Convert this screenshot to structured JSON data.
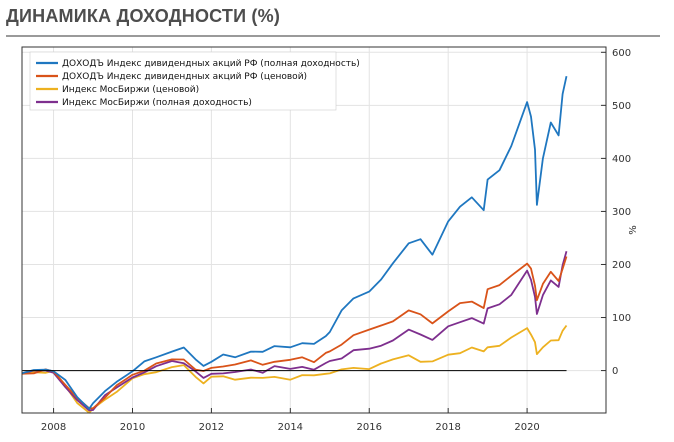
{
  "header": {
    "title": "ДИНАМИКА ДОХОДНОСТИ (%)"
  },
  "chart_data": {
    "type": "line",
    "title": "",
    "xlabel": "",
    "ylabel": "%",
    "xlim": [
      2007.2,
      2022.0
    ],
    "ylim": [
      -80,
      610
    ],
    "y_ticks": [
      0,
      100,
      200,
      300,
      400,
      500,
      600
    ],
    "x_ticks": [
      2008,
      2010,
      2012,
      2014,
      2016,
      2018,
      2020
    ],
    "grid": true,
    "legend_position": "top-left",
    "zero_line": 0,
    "series": [
      {
        "name": "ДОХОДЪ Индекс дивидендных акций РФ (полная доходность)",
        "color": "#1f77c0",
        "x": [
          2007.2,
          2007.5,
          2007.8,
          2008.0,
          2008.3,
          2008.6,
          2008.9,
          2009.0,
          2009.3,
          2009.6,
          2010.0,
          2010.3,
          2010.6,
          2011.0,
          2011.3,
          2011.6,
          2011.8,
          2012.0,
          2012.3,
          2012.6,
          2013.0,
          2013.3,
          2013.6,
          2014.0,
          2014.3,
          2014.6,
          2014.9,
          2015.0,
          2015.3,
          2015.6,
          2016.0,
          2016.3,
          2016.6,
          2017.0,
          2017.3,
          2017.6,
          2018.0,
          2018.3,
          2018.6,
          2018.9,
          2019.0,
          2019.3,
          2019.6,
          2020.0,
          2020.1,
          2020.2,
          2020.25,
          2020.4,
          2020.6,
          2020.8,
          2020.9,
          2021.0
        ],
        "y": [
          -5,
          0,
          3,
          2,
          -20,
          -50,
          -70,
          -65,
          -40,
          -20,
          2,
          15,
          25,
          38,
          40,
          20,
          10,
          20,
          28,
          25,
          38,
          32,
          45,
          45,
          55,
          48,
          65,
          75,
          110,
          135,
          150,
          175,
          200,
          240,
          250,
          215,
          280,
          310,
          330,
          300,
          360,
          380,
          420,
          505,
          480,
          420,
          310,
          400,
          470,
          440,
          520,
          555
        ]
      },
      {
        "name": "ДОХОДЪ Индекс дивидендных акций РФ (ценовой)",
        "color": "#d95319",
        "x": [
          2007.2,
          2007.5,
          2007.8,
          2008.0,
          2008.3,
          2008.6,
          2008.9,
          2009.0,
          2009.3,
          2009.6,
          2010.0,
          2010.3,
          2010.6,
          2011.0,
          2011.3,
          2011.6,
          2011.8,
          2012.0,
          2012.3,
          2012.6,
          2013.0,
          2013.3,
          2013.6,
          2014.0,
          2014.3,
          2014.6,
          2014.9,
          2015.0,
          2015.3,
          2015.6,
          2016.0,
          2016.3,
          2016.6,
          2017.0,
          2017.3,
          2017.6,
          2018.0,
          2018.3,
          2018.6,
          2018.9,
          2019.0,
          2019.3,
          2019.6,
          2020.0,
          2020.1,
          2020.2,
          2020.25,
          2020.4,
          2020.6,
          2020.8,
          2020.9,
          2021.0
        ],
        "y": [
          -6,
          -2,
          0,
          -2,
          -25,
          -55,
          -72,
          -70,
          -48,
          -30,
          -8,
          2,
          10,
          20,
          22,
          5,
          -3,
          5,
          10,
          8,
          18,
          12,
          20,
          18,
          25,
          18,
          30,
          35,
          50,
          70,
          75,
          85,
          95,
          110,
          105,
          90,
          115,
          125,
          130,
          120,
          150,
          160,
          180,
          205,
          190,
          160,
          135,
          160,
          185,
          170,
          195,
          215
        ]
      },
      {
        "name": "Индекс МосБиржи (ценовой)",
        "color": "#edb120",
        "x": [
          2007.2,
          2007.5,
          2007.8,
          2008.0,
          2008.3,
          2008.6,
          2008.9,
          2009.0,
          2009.3,
          2009.6,
          2010.0,
          2010.3,
          2010.6,
          2011.0,
          2011.3,
          2011.6,
          2011.8,
          2012.0,
          2012.3,
          2012.6,
          2013.0,
          2013.3,
          2013.6,
          2014.0,
          2014.3,
          2014.6,
          2014.9,
          2015.0,
          2015.3,
          2015.6,
          2016.0,
          2016.3,
          2016.6,
          2017.0,
          2017.3,
          2017.6,
          2018.0,
          2018.3,
          2018.6,
          2018.9,
          2019.0,
          2019.3,
          2019.6,
          2020.0,
          2020.1,
          2020.2,
          2020.25,
          2020.4,
          2020.6,
          2020.8,
          2020.9,
          2021.0
        ],
        "y": [
          -6,
          -3,
          -2,
          -4,
          -30,
          -60,
          -76,
          -74,
          -55,
          -38,
          -18,
          -8,
          -2,
          10,
          8,
          -12,
          -22,
          -15,
          -12,
          -16,
          -10,
          -16,
          -12,
          -15,
          -12,
          -10,
          -5,
          -2,
          0,
          5,
          5,
          10,
          20,
          30,
          20,
          15,
          30,
          35,
          40,
          35,
          45,
          50,
          60,
          80,
          70,
          50,
          30,
          45,
          60,
          55,
          75,
          85
        ]
      },
      {
        "name": "Индекс МосБиржи (полная доходность)",
        "color": "#7e2f8e",
        "x": [
          2007.2,
          2007.5,
          2007.8,
          2008.0,
          2008.3,
          2008.6,
          2008.9,
          2009.0,
          2009.3,
          2009.6,
          2010.0,
          2010.3,
          2010.6,
          2011.0,
          2011.3,
          2011.6,
          2011.8,
          2012.0,
          2012.3,
          2012.6,
          2013.0,
          2013.3,
          2013.6,
          2014.0,
          2014.3,
          2014.6,
          2014.9,
          2015.0,
          2015.3,
          2015.6,
          2016.0,
          2016.3,
          2016.6,
          2017.0,
          2017.3,
          2017.6,
          2018.0,
          2018.3,
          2018.6,
          2018.9,
          2019.0,
          2019.3,
          2019.6,
          2020.0,
          2020.1,
          2020.2,
          2020.25,
          2020.4,
          2020.6,
          2020.8,
          2020.9,
          2021.0
        ],
        "y": [
          -6,
          -3,
          -1,
          -3,
          -28,
          -58,
          -75,
          -72,
          -50,
          -33,
          -12,
          0,
          6,
          18,
          16,
          -5,
          -15,
          -5,
          -2,
          -5,
          2,
          -2,
          5,
          2,
          8,
          5,
          12,
          18,
          25,
          35,
          40,
          48,
          60,
          75,
          68,
          60,
          80,
          90,
          100,
          92,
          115,
          125,
          145,
          185,
          170,
          140,
          110,
          140,
          170,
          160,
          195,
          225
        ]
      }
    ]
  }
}
